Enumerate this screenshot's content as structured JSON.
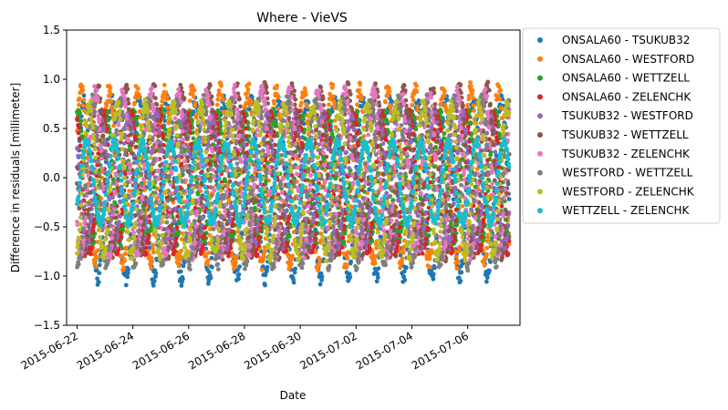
{
  "chart_data": {
    "type": "scatter",
    "title": "Where - VieVS",
    "xlabel": "Date",
    "ylabel": "Difference in residuals [millimeter]",
    "ylim": [
      -1.5,
      1.5
    ],
    "xlim": [
      "2015-06-21T15:00",
      "2015-07-07T21:00"
    ],
    "yticks": [
      -1.5,
      -1.0,
      -0.5,
      0.0,
      0.5,
      1.0,
      1.5
    ],
    "ytick_labels": [
      "−1.5",
      "−1.0",
      "−0.5",
      "0.0",
      "0.5",
      "1.0",
      "1.5"
    ],
    "xticks": [
      "2015-06-22",
      "2015-06-24",
      "2015-06-26",
      "2015-06-28",
      "2015-06-30",
      "2015-07-02",
      "2015-07-04",
      "2015-07-06"
    ],
    "data_range_x": [
      "2015-06-22",
      "2015-07-07"
    ],
    "grid": false,
    "legend_position": "outside-right",
    "series": [
      {
        "name": "ONSALA60 - TSUKUB32",
        "color": "#1f77b4",
        "min": -1.1,
        "max": 0.85,
        "mean": -0.15
      },
      {
        "name": "ONSALA60 - WESTFORD",
        "color": "#ff7f0e",
        "min": -0.95,
        "max": 0.98,
        "mean": 0.0
      },
      {
        "name": "ONSALA60 - WETTZELL",
        "color": "#2ca02c",
        "min": -0.7,
        "max": 0.7,
        "mean": 0.0
      },
      {
        "name": "ONSALA60 - ZELENCHK",
        "color": "#d62728",
        "min": -0.8,
        "max": 0.7,
        "mean": -0.05
      },
      {
        "name": "TSUKUB32 - WESTFORD",
        "color": "#9467bd",
        "min": -0.75,
        "max": 0.7,
        "mean": 0.0
      },
      {
        "name": "TSUKUB32 - WETTZELL",
        "color": "#8c564b",
        "min": -0.85,
        "max": 0.98,
        "mean": 0.05
      },
      {
        "name": "TSUKUB32 - ZELENCHK",
        "color": "#e377c2",
        "min": -0.85,
        "max": 0.95,
        "mean": 0.05
      },
      {
        "name": "WESTFORD - WETTZELL",
        "color": "#7f7f7f",
        "min": -0.95,
        "max": 0.85,
        "mean": -0.05
      },
      {
        "name": "WESTFORD - ZELENCHK",
        "color": "#bcbd22",
        "min": -0.85,
        "max": 0.8,
        "mean": -0.05
      },
      {
        "name": "WETTZELL - ZELENCHK",
        "color": "#17becf",
        "min": -0.5,
        "max": 0.4,
        "mean": -0.05
      }
    ]
  }
}
